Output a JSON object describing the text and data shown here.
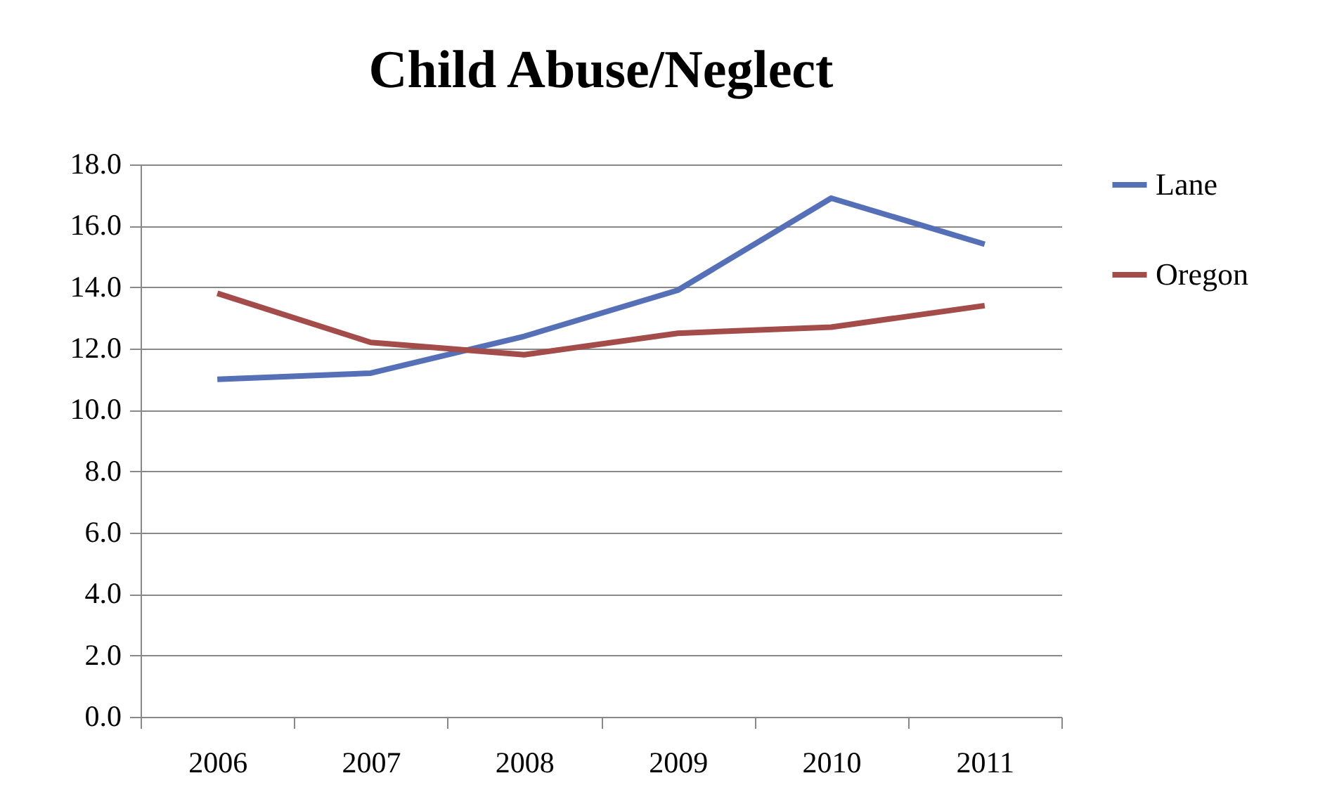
{
  "chart_data": {
    "type": "line",
    "title": "Child Abuse/Neglect",
    "categories": [
      "2006",
      "2007",
      "2008",
      "2009",
      "2010",
      "2011"
    ],
    "series": [
      {
        "name": "Lane",
        "color": "#5670b8",
        "values": [
          11.0,
          11.2,
          12.4,
          13.9,
          16.9,
          15.4
        ]
      },
      {
        "name": "Oregon",
        "color": "#a34c4a",
        "values": [
          13.8,
          12.2,
          11.8,
          12.5,
          12.7,
          13.4
        ]
      }
    ],
    "ylim": [
      0,
      18
    ],
    "yticks": [
      {
        "value": 0,
        "label": "0.0"
      },
      {
        "value": 2,
        "label": "2.0"
      },
      {
        "value": 4,
        "label": "4.0"
      },
      {
        "value": 6,
        "label": "6.0"
      },
      {
        "value": 8,
        "label": "8.0"
      },
      {
        "value": 10,
        "label": "10.0"
      },
      {
        "value": 12,
        "label": "12.0"
      },
      {
        "value": 14,
        "label": "14.0"
      },
      {
        "value": 16,
        "label": "16.0"
      },
      {
        "value": 18,
        "label": "18.0"
      }
    ],
    "grid": "y",
    "legend": "right",
    "marker": "none",
    "line_style": "solid"
  }
}
